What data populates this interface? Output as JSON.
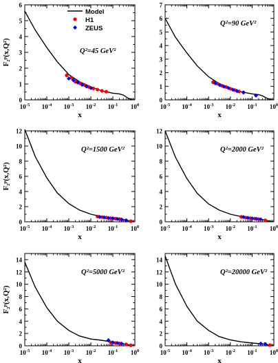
{
  "figure": {
    "y_axis_label": "F₂ᵖ(x,Q²)",
    "legend": {
      "entries": [
        {
          "label": "Model",
          "kind": "line",
          "color": "#000000"
        },
        {
          "label": "H1",
          "kind": "circle",
          "color": "#ff0000"
        },
        {
          "label": "ZEUS",
          "kind": "diamond",
          "color": "#0000ff"
        }
      ]
    }
  },
  "chart_data": [
    {
      "type": "line",
      "panel": "top-left",
      "annotation": "Q²=45 GeV²",
      "xlabel": "x",
      "x_scale": "log",
      "xlim": [
        1e-05,
        1
      ],
      "x_ticks": [
        "10-5",
        "10-4",
        "10-3",
        "10-2",
        "10-1",
        "100"
      ],
      "ylim": [
        0,
        6
      ],
      "y_ticks": [
        "0",
        "1",
        "2",
        "3",
        "4",
        "5",
        "6"
      ],
      "legend": "top-right",
      "series": [
        {
          "name": "Model",
          "x": [
            1e-05,
            3e-05,
            0.0001,
            0.0003,
            0.001,
            0.003,
            0.01,
            0.03,
            0.1,
            0.2,
            0.3,
            0.5,
            0.8
          ],
          "y": [
            5.6,
            4.4,
            3.3,
            2.4,
            1.6,
            1.15,
            0.82,
            0.58,
            0.42,
            0.38,
            0.3,
            0.1,
            0.01
          ]
        },
        {
          "name": "H1",
          "x": [
            0.0008,
            0.0013,
            0.002,
            0.0032,
            0.005,
            0.008,
            0.013,
            0.02,
            0.032,
            0.05
          ],
          "y": [
            1.55,
            1.4,
            1.15,
            1.05,
            0.95,
            0.82,
            0.72,
            0.65,
            0.57,
            0.52
          ],
          "err": [
            0.12,
            0.1,
            0.09,
            0.08,
            0.07,
            0.06,
            0.05,
            0.05,
            0.05,
            0.05
          ]
        },
        {
          "name": "ZEUS",
          "x": [
            0.001,
            0.0016,
            0.0025,
            0.004,
            0.0063,
            0.01
          ],
          "y": [
            1.35,
            1.25,
            1.1,
            0.95,
            0.85,
            0.75
          ],
          "err": [
            0.1,
            0.09,
            0.08,
            0.07,
            0.06,
            0.05
          ]
        }
      ]
    },
    {
      "type": "line",
      "panel": "top-right",
      "annotation": "Q²=90 GeV²",
      "xlabel": "x",
      "x_scale": "log",
      "xlim": [
        1e-05,
        1
      ],
      "x_ticks": [
        "10-5",
        "10-4",
        "10-3",
        "10-2",
        "10-1",
        "100"
      ],
      "ylim": [
        0,
        7
      ],
      "y_ticks": [
        "0",
        "1",
        "2",
        "3",
        "4",
        "5",
        "6",
        "7"
      ],
      "series": [
        {
          "name": "Model",
          "x": [
            1e-05,
            3e-05,
            0.0001,
            0.0003,
            0.001,
            0.003,
            0.01,
            0.03,
            0.1,
            0.2,
            0.3,
            0.5,
            0.8
          ],
          "y": [
            6.0,
            4.6,
            3.45,
            2.5,
            1.7,
            1.2,
            0.85,
            0.6,
            0.44,
            0.38,
            0.3,
            0.1,
            0.01
          ]
        },
        {
          "name": "H1",
          "x": [
            0.0016,
            0.0025,
            0.004,
            0.0063,
            0.01,
            0.016,
            0.025,
            0.04
          ],
          "y": [
            1.3,
            1.2,
            1.05,
            0.95,
            0.82,
            0.72,
            0.62,
            0.55
          ],
          "err": [
            0.12,
            0.1,
            0.09,
            0.08,
            0.07,
            0.06,
            0.05,
            0.05
          ]
        },
        {
          "name": "ZEUS",
          "x": [
            0.002,
            0.0032,
            0.005,
            0.008,
            0.013,
            0.02,
            0.04,
            0.15
          ],
          "y": [
            1.22,
            1.1,
            0.98,
            0.88,
            0.75,
            0.65,
            0.55,
            0.32
          ],
          "err": [
            0.1,
            0.09,
            0.08,
            0.07,
            0.06,
            0.06,
            0.05,
            0.06
          ]
        }
      ]
    },
    {
      "type": "line",
      "panel": "middle-left",
      "annotation": "Q²=1500 GeV²",
      "xlabel": "x",
      "x_scale": "log",
      "xlim": [
        1e-05,
        1
      ],
      "x_ticks": [
        "10-5",
        "10-4",
        "10-3",
        "10-2",
        "10-1",
        "100"
      ],
      "ylim": [
        0,
        12
      ],
      "y_ticks": [
        "0",
        "2",
        "4",
        "6",
        "8",
        "10",
        "12"
      ],
      "series": [
        {
          "name": "Model",
          "x": [
            1e-05,
            3e-05,
            0.0001,
            0.0003,
            0.001,
            0.003,
            0.01,
            0.03,
            0.1,
            0.3,
            0.6,
            0.9
          ],
          "y": [
            12.2,
            8.6,
            5.8,
            3.8,
            2.4,
            1.55,
            1.0,
            0.7,
            0.5,
            0.3,
            0.1,
            0.01
          ]
        },
        {
          "name": "H1",
          "x": [
            0.02,
            0.032,
            0.05,
            0.08,
            0.13,
            0.2,
            0.25,
            0.4,
            0.65
          ],
          "y": [
            0.7,
            0.62,
            0.55,
            0.48,
            0.42,
            0.35,
            0.3,
            0.2,
            0.08
          ],
          "err": [
            0.1,
            0.08,
            0.07,
            0.06,
            0.06,
            0.05,
            0.05,
            0.05,
            0.04
          ]
        },
        {
          "name": "ZEUS",
          "x": [
            0.025,
            0.04,
            0.063,
            0.1,
            0.16,
            0.25,
            0.4
          ],
          "y": [
            0.65,
            0.58,
            0.5,
            0.45,
            0.38,
            0.3,
            0.18
          ],
          "err": [
            0.15,
            0.12,
            0.1,
            0.08,
            0.07,
            0.06,
            0.05
          ]
        }
      ]
    },
    {
      "type": "line",
      "panel": "middle-right",
      "annotation": "Q²=2000 GeV²",
      "xlabel": "x",
      "x_scale": "log",
      "xlim": [
        1e-05,
        1
      ],
      "x_ticks": [
        "10-5",
        "10-4",
        "10-3",
        "10-2",
        "10-1",
        "100"
      ],
      "ylim": [
        0,
        12
      ],
      "y_ticks": [
        "0",
        "2",
        "4",
        "6",
        "8",
        "10",
        "12"
      ],
      "series": [
        {
          "name": "Model",
          "x": [
            1e-05,
            3e-05,
            0.0001,
            0.0003,
            0.001,
            0.003,
            0.01,
            0.03,
            0.1,
            0.3,
            0.6,
            0.9
          ],
          "y": [
            12.0,
            8.5,
            5.7,
            3.75,
            2.35,
            1.55,
            1.0,
            0.7,
            0.5,
            0.3,
            0.1,
            0.01
          ]
        },
        {
          "name": "H1",
          "x": [
            0.032,
            0.05,
            0.08,
            0.13,
            0.2,
            0.4
          ],
          "y": [
            0.65,
            0.55,
            0.48,
            0.42,
            0.35,
            0.2
          ],
          "err": [
            0.15,
            0.1,
            0.08,
            0.07,
            0.06,
            0.05
          ]
        },
        {
          "name": "ZEUS",
          "x": [
            0.04,
            0.063,
            0.1,
            0.16,
            0.25
          ],
          "y": [
            0.62,
            0.52,
            0.45,
            0.38,
            0.32
          ],
          "err": [
            0.2,
            0.12,
            0.1,
            0.08,
            0.06
          ]
        }
      ]
    },
    {
      "type": "line",
      "panel": "bottom-left",
      "annotation": "Q²=5000 GeV²",
      "xlabel": "x",
      "x_scale": "log",
      "xlim": [
        1e-05,
        1
      ],
      "x_ticks": [
        "10-5",
        "10-4",
        "10-3",
        "10-2",
        "10-1",
        "100"
      ],
      "ylim": [
        0,
        15
      ],
      "y_ticks": [
        "0",
        "2",
        "4",
        "6",
        "8",
        "10",
        "12",
        "14"
      ],
      "series": [
        {
          "name": "Model",
          "x": [
            1e-05,
            3e-05,
            0.0001,
            0.0003,
            0.001,
            0.003,
            0.01,
            0.03,
            0.1,
            0.3,
            0.6,
            0.9
          ],
          "y": [
            13.6,
            9.5,
            6.2,
            4.0,
            2.5,
            1.6,
            1.1,
            0.9,
            0.6,
            0.32,
            0.1,
            0.01
          ]
        },
        {
          "name": "H1",
          "x": [
            0.08,
            0.13,
            0.2,
            0.4,
            0.65
          ],
          "y": [
            0.55,
            0.45,
            0.38,
            0.22,
            0.08
          ],
          "err": [
            0.15,
            0.1,
            0.08,
            0.06,
            0.05
          ]
        },
        {
          "name": "ZEUS",
          "x": [
            0.063,
            0.1,
            0.16,
            0.25
          ],
          "y": [
            0.9,
            0.55,
            0.45,
            0.35
          ],
          "err": [
            0.35,
            0.2,
            0.12,
            0.1
          ]
        }
      ]
    },
    {
      "type": "line",
      "panel": "bottom-right",
      "annotation": "Q²=20000 GeV²",
      "xlabel": "x",
      "x_scale": "log",
      "xlim": [
        1e-05,
        1
      ],
      "x_ticks": [
        "10-5",
        "10-4",
        "10-3",
        "10-2",
        "10-1",
        "100"
      ],
      "ylim": [
        0,
        15
      ],
      "y_ticks": [
        "0",
        "2",
        "4",
        "6",
        "8",
        "10",
        "12",
        "14"
      ],
      "series": [
        {
          "name": "Model",
          "x": [
            1e-05,
            3e-05,
            0.0001,
            0.0003,
            0.001,
            0.003,
            0.01,
            0.03,
            0.1,
            0.3,
            0.6,
            0.9
          ],
          "y": [
            14.6,
            10.0,
            6.4,
            4.0,
            2.5,
            1.5,
            0.95,
            0.65,
            0.45,
            0.3,
            0.1,
            0.01
          ]
        },
        {
          "name": "H1",
          "x": [
            0.4,
            0.65
          ],
          "y": [
            0.3,
            0.12
          ],
          "err": [
            0.15,
            0.08
          ]
        },
        {
          "name": "ZEUS",
          "x": [
            0.25,
            0.4
          ],
          "y": [
            0.35,
            0.25
          ],
          "err": [
            0.3,
            0.2
          ]
        }
      ]
    }
  ]
}
